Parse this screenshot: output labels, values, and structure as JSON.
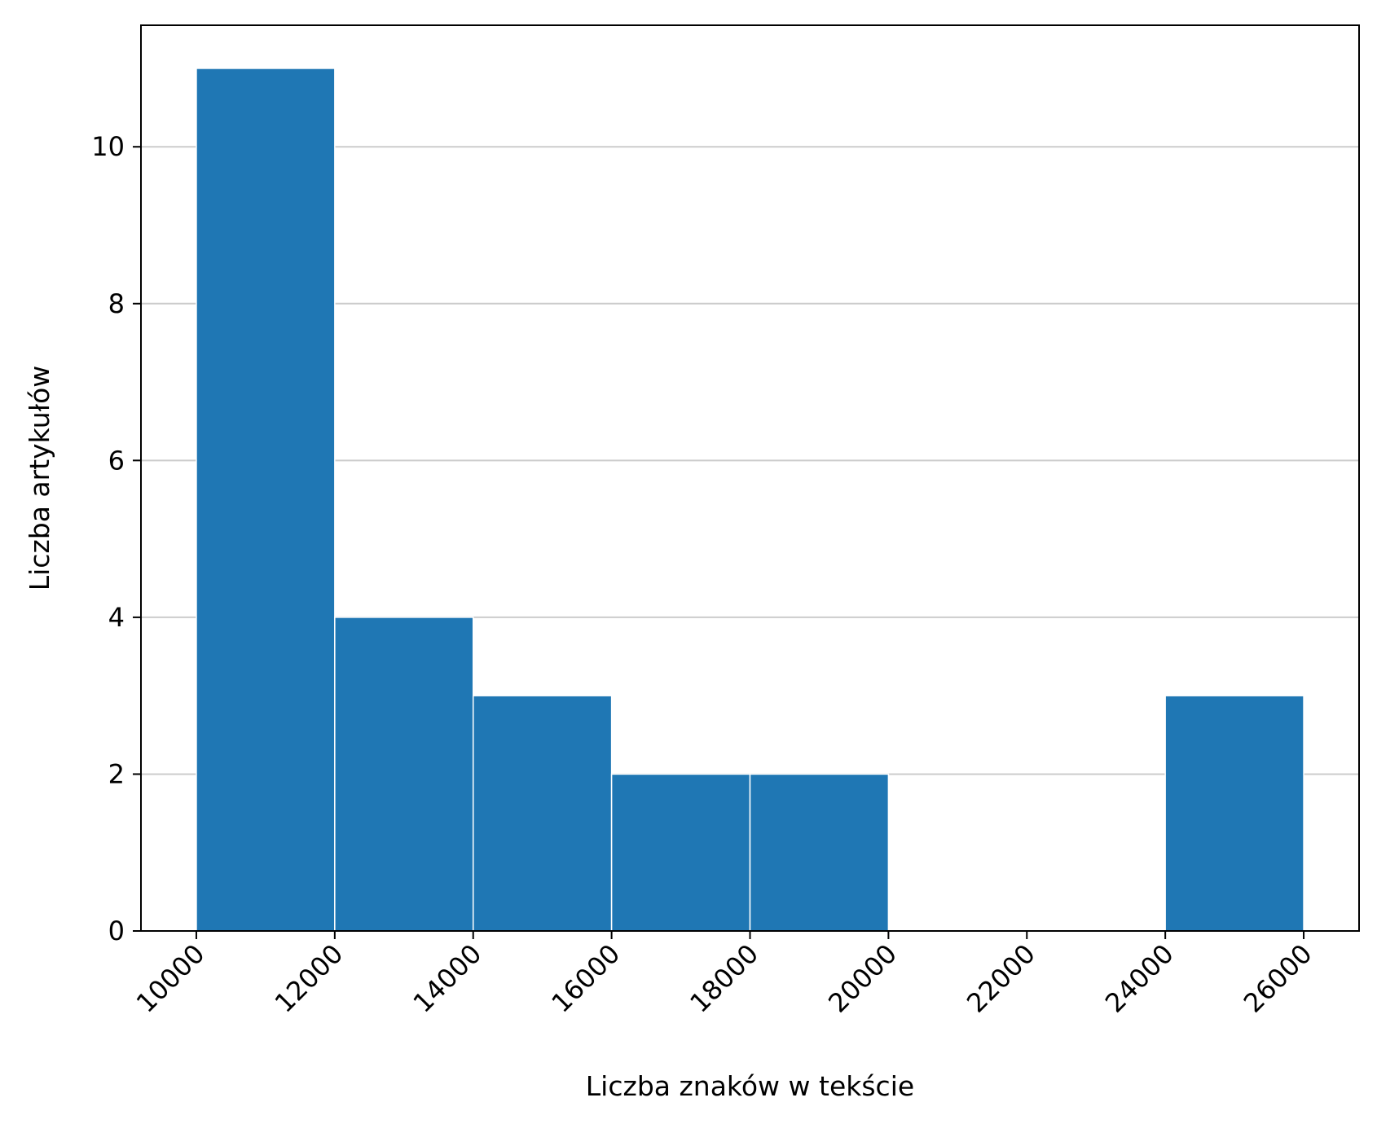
{
  "chart_data": {
    "type": "bar",
    "histogram": true,
    "title": "",
    "xlabel": "Liczba znaków w tekście",
    "ylabel": "Liczba artykułów",
    "bins": [
      {
        "start": 10000,
        "end": 12000,
        "count": 11
      },
      {
        "start": 12000,
        "end": 14000,
        "count": 4
      },
      {
        "start": 14000,
        "end": 16000,
        "count": 3
      },
      {
        "start": 16000,
        "end": 18000,
        "count": 2
      },
      {
        "start": 18000,
        "end": 20000,
        "count": 2
      },
      {
        "start": 20000,
        "end": 22000,
        "count": 0
      },
      {
        "start": 22000,
        "end": 24000,
        "count": 0
      },
      {
        "start": 24000,
        "end": 26000,
        "count": 3
      }
    ],
    "xticks": [
      "10000",
      "12000",
      "14000",
      "16000",
      "18000",
      "20000",
      "22000",
      "24000",
      "26000"
    ],
    "yticks": [
      "0",
      "2",
      "4",
      "6",
      "8",
      "10"
    ],
    "xlim": [
      9200,
      26800
    ],
    "ylim": [
      0,
      11.55
    ],
    "grid": "horizontal",
    "bar_color": "#1f77b4",
    "grid_color": "#cccccc"
  }
}
